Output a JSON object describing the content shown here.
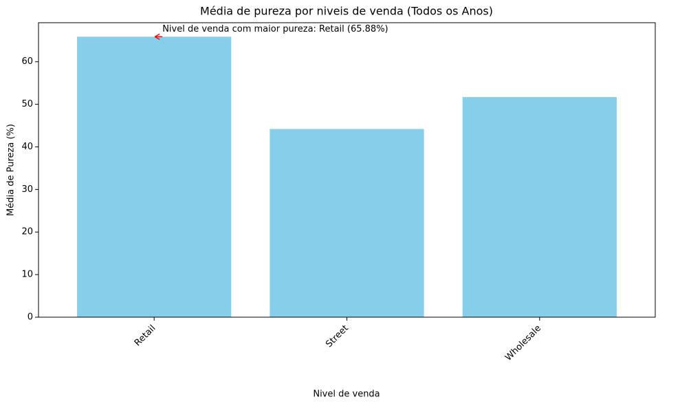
{
  "chart_data": {
    "type": "bar",
    "title": "Média de pureza por niveis de venda (Todos os Anos)",
    "x_label": "Nivel de venda",
    "y_label": "Média de Pureza (%)",
    "categories": [
      "Retail",
      "Street",
      "Wholesale"
    ],
    "values": [
      65.88,
      44.2,
      51.7
    ],
    "color": "#87ceeb",
    "ylim": [
      0,
      69.17
    ],
    "yticks": [
      0,
      10,
      20,
      30,
      40,
      50,
      60
    ],
    "annotation": "Nivel de venda com maior pureza: Retail (65.88%)",
    "annotation_color": "#ff0000"
  }
}
